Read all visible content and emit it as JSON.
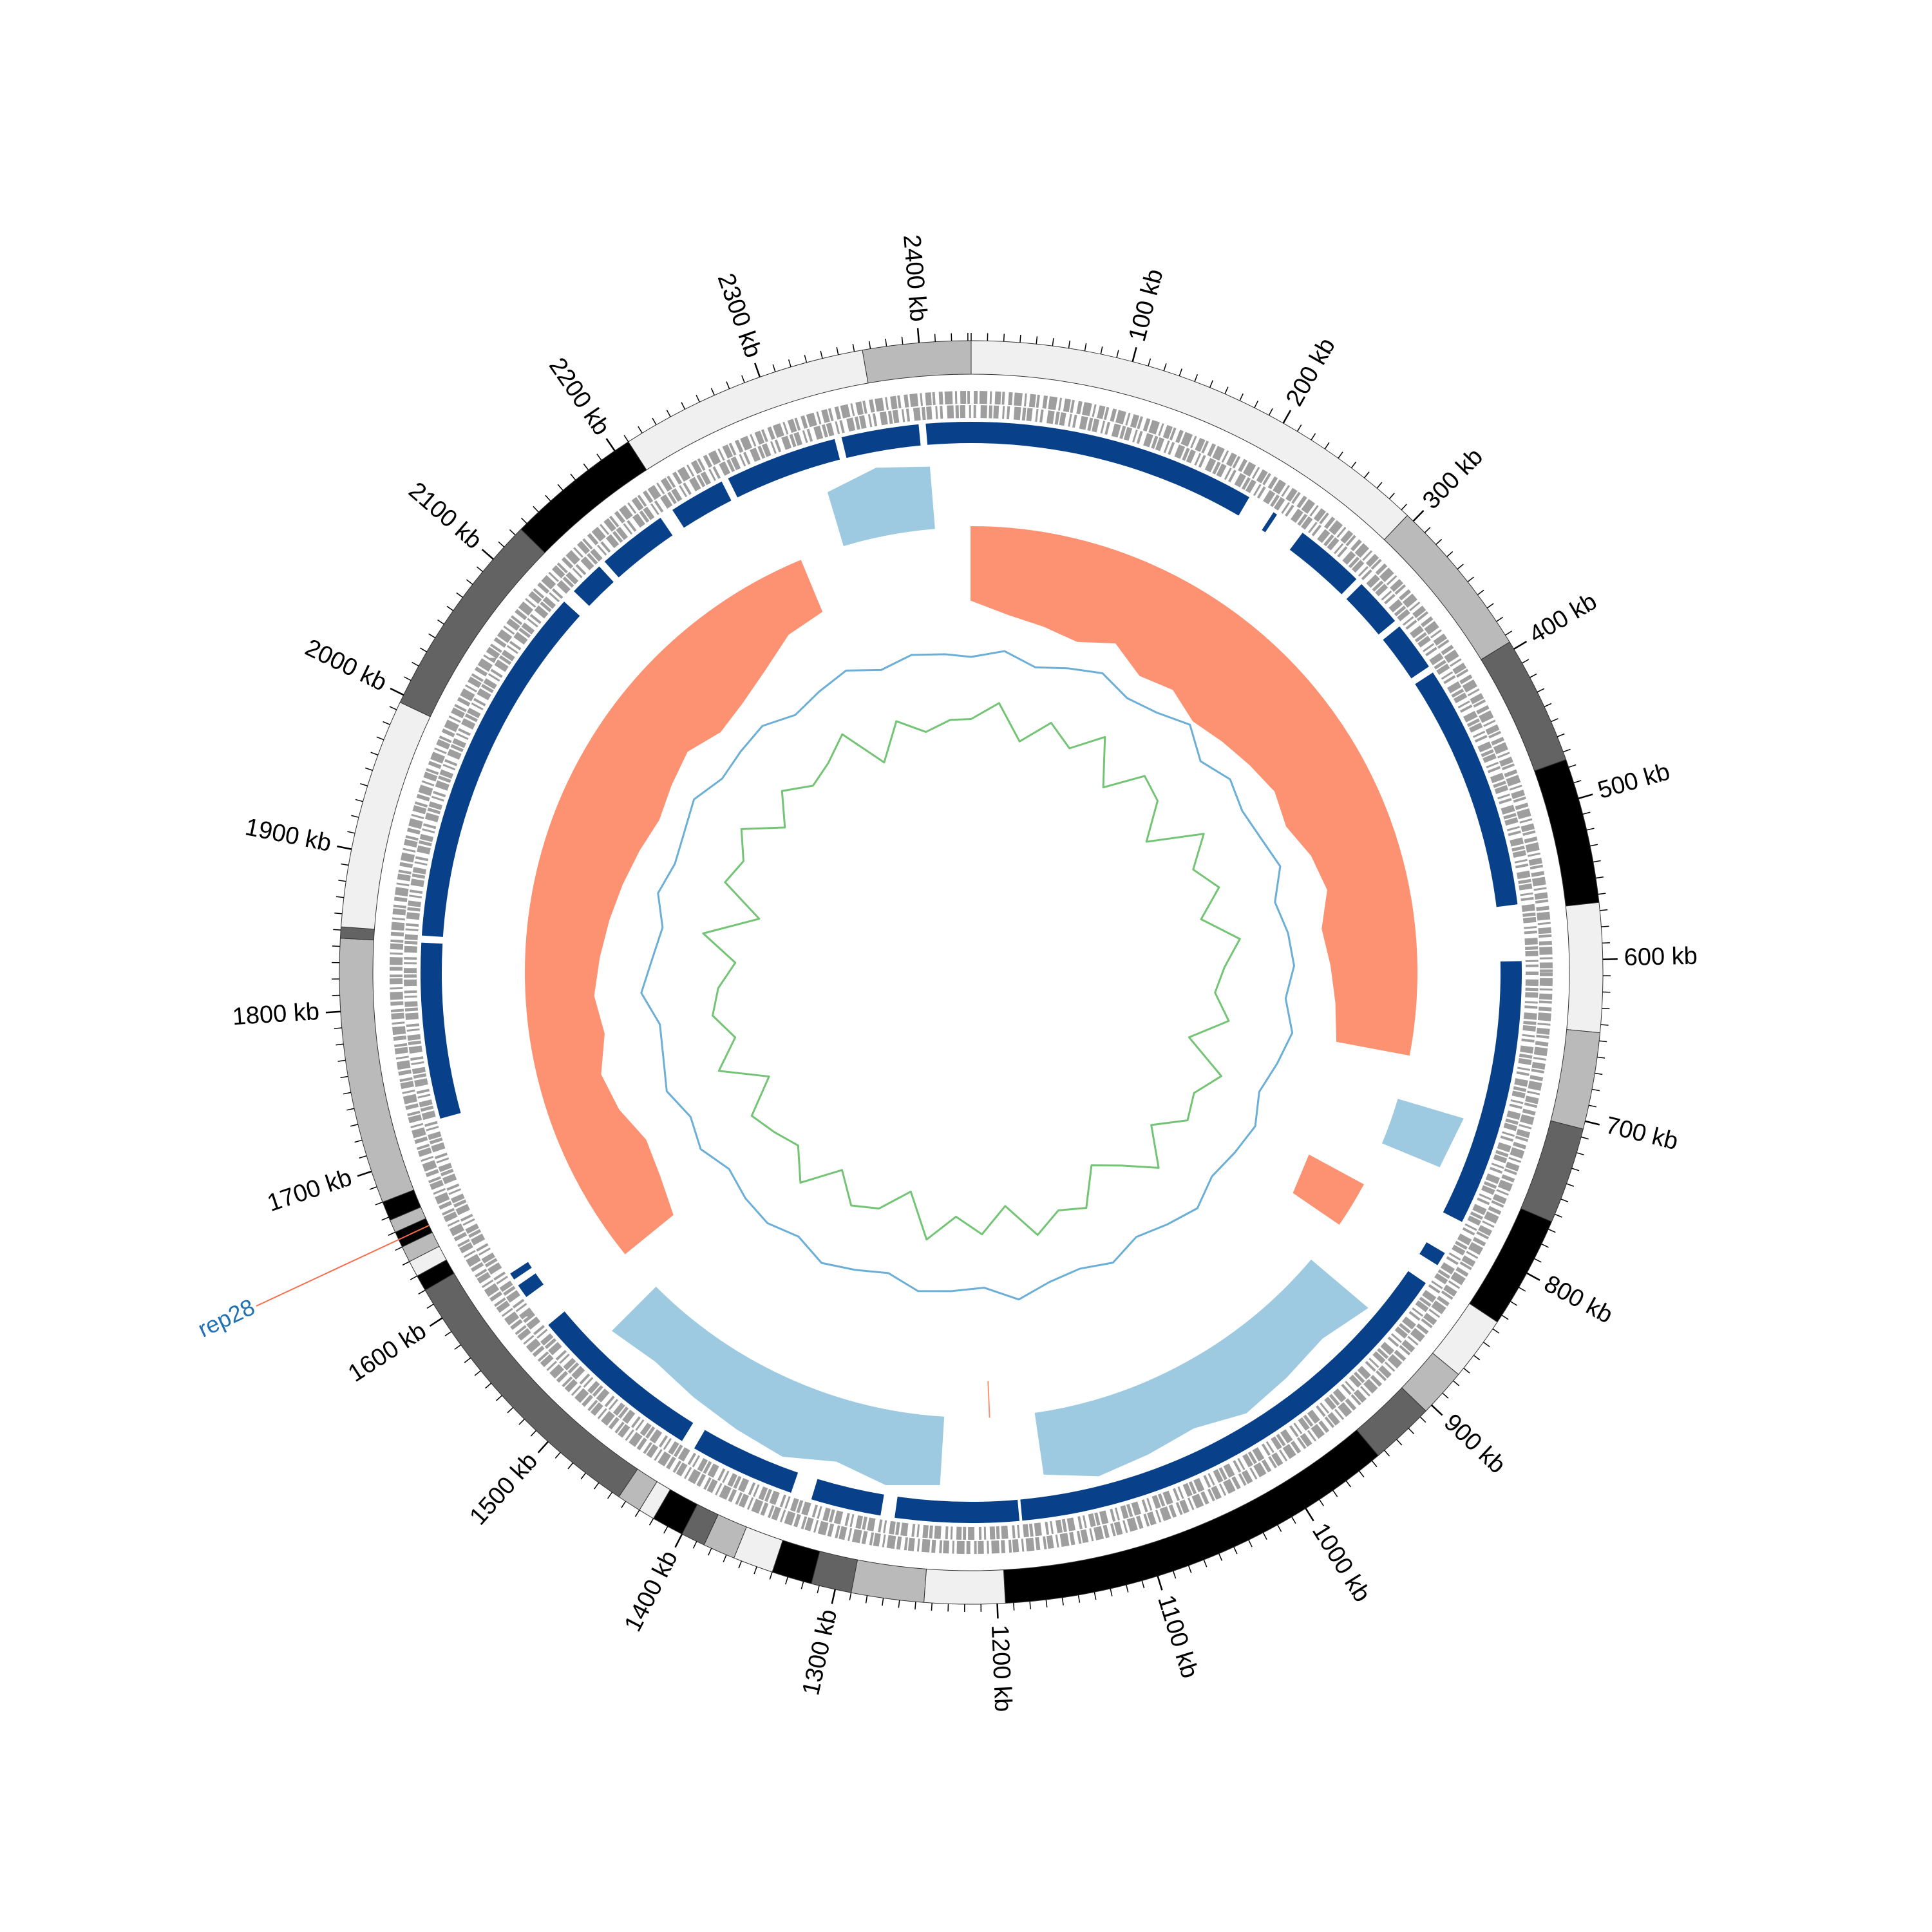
{
  "chart_data": {
    "type": "circos",
    "xlim": [
      0,
      2432
    ],
    "minor_tick_step": 10,
    "xticks": [
      {
        "value": 100,
        "label": "100 kb"
      },
      {
        "value": 200,
        "label": "200 kb"
      },
      {
        "value": 300,
        "label": "300 kb"
      },
      {
        "value": 400,
        "label": "400 kb"
      },
      {
        "value": 500,
        "label": "500 kb"
      },
      {
        "value": 600,
        "label": "600 kb"
      },
      {
        "value": 700,
        "label": "700 kb"
      },
      {
        "value": 800,
        "label": "800 kb"
      },
      {
        "value": 900,
        "label": "900 kb"
      },
      {
        "value": 1000,
        "label": "1000 kb"
      },
      {
        "value": 1100,
        "label": "1100 kb"
      },
      {
        "value": 1200,
        "label": "1200 kb"
      },
      {
        "value": 1300,
        "label": "1300 kb"
      },
      {
        "value": 1400,
        "label": "1400 kb"
      },
      {
        "value": 1500,
        "label": "1500 kb"
      },
      {
        "value": 1600,
        "label": "1600 kb"
      },
      {
        "value": 1700,
        "label": "1700 kb"
      },
      {
        "value": 1800,
        "label": "1800 kb"
      },
      {
        "value": 1900,
        "label": "1900 kb"
      },
      {
        "value": 2000,
        "label": "2000 kb"
      },
      {
        "value": 2100,
        "label": "2100 kb"
      },
      {
        "value": 2200,
        "label": "2200 kb"
      },
      {
        "value": 2300,
        "label": "2300 kb"
      },
      {
        "value": 2400,
        "label": "2400 kb"
      }
    ],
    "segments": [
      {
        "start": 0,
        "end": 295,
        "color": "#f0f0f0"
      },
      {
        "start": 295,
        "end": 395,
        "color": "#bababa"
      },
      {
        "start": 395,
        "end": 475,
        "color": "#636363"
      },
      {
        "start": 475,
        "end": 565,
        "color": "#000000"
      },
      {
        "start": 565,
        "end": 645,
        "color": "#f0f0f0"
      },
      {
        "start": 645,
        "end": 705,
        "color": "#bababa"
      },
      {
        "start": 705,
        "end": 765,
        "color": "#636363"
      },
      {
        "start": 765,
        "end": 835,
        "color": "#000000"
      },
      {
        "start": 835,
        "end": 875,
        "color": "#f0f0f0"
      },
      {
        "start": 875,
        "end": 905,
        "color": "#bababa"
      },
      {
        "start": 905,
        "end": 945,
        "color": "#636363"
      },
      {
        "start": 945,
        "end": 1195,
        "color": "#000000"
      },
      {
        "start": 1195,
        "end": 1245,
        "color": "#f0f0f0"
      },
      {
        "start": 1245,
        "end": 1290,
        "color": "#bababa"
      },
      {
        "start": 1290,
        "end": 1315,
        "color": "#636363"
      },
      {
        "start": 1315,
        "end": 1340,
        "color": "#000000"
      },
      {
        "start": 1340,
        "end": 1365,
        "color": "#f0f0f0"
      },
      {
        "start": 1365,
        "end": 1385,
        "color": "#bababa"
      },
      {
        "start": 1385,
        "end": 1400,
        "color": "#636363"
      },
      {
        "start": 1400,
        "end": 1420,
        "color": "#000000"
      },
      {
        "start": 1420,
        "end": 1430,
        "color": "#f0f0f0"
      },
      {
        "start": 1430,
        "end": 1445,
        "color": "#bababa"
      },
      {
        "start": 1445,
        "end": 1620,
        "color": "#636363"
      },
      {
        "start": 1620,
        "end": 1630,
        "color": "#000000"
      },
      {
        "start": 1630,
        "end": 1640,
        "color": "#f0f0f0"
      },
      {
        "start": 1640,
        "end": 1650,
        "color": "#bababa"
      },
      {
        "start": 1650,
        "end": 1660,
        "color": "#000000"
      },
      {
        "start": 1660,
        "end": 1668,
        "color": "#bababa"
      },
      {
        "start": 1668,
        "end": 1680,
        "color": "#000000"
      },
      {
        "start": 1680,
        "end": 1845,
        "color": "#bababa"
      },
      {
        "start": 1845,
        "end": 1852,
        "color": "#636363"
      },
      {
        "start": 1852,
        "end": 1995,
        "color": "#f0f0f0"
      },
      {
        "start": 1995,
        "end": 2125,
        "color": "#636363"
      },
      {
        "start": 2125,
        "end": 2210,
        "color": "#000000"
      },
      {
        "start": 2210,
        "end": 2365,
        "color": "#f0f0f0"
      },
      {
        "start": 2365,
        "end": 2432,
        "color": "#bababa"
      }
    ],
    "block_color": "#08408a",
    "blocks": [
      {
        "start": 0,
        "end": 205
      },
      {
        "start": 225,
        "end": 228
      },
      {
        "start": 250,
        "end": 300
      },
      {
        "start": 305,
        "end": 340
      },
      {
        "start": 345,
        "end": 380
      },
      {
        "start": 385,
        "end": 560
      },
      {
        "start": 600,
        "end": 790
      },
      {
        "start": 815,
        "end": 825
      },
      {
        "start": 840,
        "end": 1180
      },
      {
        "start": 1182,
        "end": 1270
      },
      {
        "start": 1280,
        "end": 1330
      },
      {
        "start": 1345,
        "end": 1420
      },
      {
        "start": 1430,
        "end": 1555
      },
      {
        "start": 1580,
        "end": 1590
      },
      {
        "start": 1595,
        "end": 1600
      },
      {
        "start": 1720,
        "end": 1845
      },
      {
        "start": 1850,
        "end": 2110
      },
      {
        "start": 2120,
        "end": 2145
      },
      {
        "start": 2150,
        "end": 2200
      },
      {
        "start": 2210,
        "end": 2250
      },
      {
        "start": 2255,
        "end": 2335
      },
      {
        "start": 2340,
        "end": 2395
      },
      {
        "start": 2400,
        "end": 2432
      }
    ],
    "skew": {
      "positive_color": "#fc9272",
      "negative_color": "#9ecae1",
      "x": [
        0,
        40,
        80,
        120,
        160,
        200,
        240,
        280,
        320,
        360,
        400,
        440,
        480,
        520,
        560,
        600,
        640,
        680,
        720,
        760,
        800,
        840,
        880,
        920,
        960,
        1000,
        1040,
        1080,
        1120,
        1160,
        1200,
        1240,
        1280,
        1320,
        1360,
        1400,
        1440,
        1480,
        1520,
        1560,
        1600,
        1640,
        1680,
        1720,
        1760,
        1800,
        1840,
        1880,
        1920,
        1960,
        2000,
        2040,
        2080,
        2120,
        2160,
        2200,
        2240,
        2280,
        2320,
        2360,
        2400
      ],
      "values": [
        0.6,
        0.7,
        0.75,
        0.8,
        0.7,
        0.85,
        0.8,
        0.9,
        0.85,
        0.8,
        0.75,
        0.8,
        0.7,
        0.65,
        0.75,
        0.7,
        0.65,
        0.6,
        -0.55,
        -0.5,
        0.5,
        0.45,
        -0.6,
        -0.5,
        -0.55,
        -0.6,
        -0.5,
        -0.55,
        -0.6,
        -0.5,
        0.3,
        -0.55,
        -0.6,
        -0.5,
        -0.6,
        -0.55,
        -0.5,
        -0.45,
        -0.5,
        0.5,
        0.6,
        0.65,
        0.55,
        0.5,
        0.6,
        0.55,
        0.6,
        0.65,
        0.7,
        0.75,
        0.8,
        0.75,
        0.7,
        0.8,
        0.75,
        0.65,
        0.5,
        0.45,
        -0.45,
        -0.55,
        -0.5
      ]
    },
    "gc": {
      "x": [
        0,
        40,
        80,
        120,
        160,
        200,
        240,
        280,
        320,
        360,
        400,
        440,
        480,
        520,
        560,
        600,
        640,
        680,
        720,
        760,
        800,
        840,
        880,
        920,
        960,
        1000,
        1040,
        1080,
        1120,
        1160,
        1200,
        1240,
        1280,
        1320,
        1360,
        1400,
        1440,
        1480,
        1520,
        1560,
        1600,
        1640,
        1680,
        1720,
        1760,
        1800,
        1840,
        1880,
        1920,
        1960,
        2000,
        2040,
        2080,
        2120,
        2160,
        2200,
        2240,
        2280,
        2320,
        2360,
        2400
      ],
      "series": [
        {
          "color": "#6baed6",
          "values": [
            0.5,
            0.7,
            0.4,
            0.6,
            0.8,
            0.5,
            0.6,
            0.9,
            0.4,
            0.7,
            0.5,
            0.6,
            0.8,
            0.4,
            0.6,
            0.7,
            0.5,
            0.8,
            0.6,
            0.4,
            0.7,
            0.6,
            0.5,
            0.8,
            0.6,
            0.4,
            0.7,
            0.5,
            0.6,
            0.9,
            0.5,
            0.6,
            0.7,
            0.4,
            0.6,
            0.8,
            0.5,
            0.7,
            0.6,
            0.4,
            0.7,
            0.5,
            0.8,
            0.6,
            0.5,
            0.9,
            0.6,
            0.4,
            0.7,
            0.5,
            0.6,
            0.8,
            0.5,
            0.6,
            0.7,
            0.4,
            0.6,
            0.8,
            0.5,
            0.7,
            0.6
          ]
        },
        {
          "color": "#74c476",
          "values": [
            0.5,
            0.3,
            0.7,
            0.4,
            0.6,
            0.3,
            0.8,
            0.4,
            0.5,
            0.9,
            0.3,
            0.6,
            0.4,
            0.7,
            0.3,
            0.5,
            0.6,
            0.4,
            0.8,
            0.3,
            0.5,
            0.4,
            0.7,
            0.3,
            0.6,
            0.8,
            0.4,
            0.5,
            0.3,
            0.7,
            0.4,
            0.6,
            0.3,
            0.8,
            0.5,
            0.4,
            0.7,
            0.3,
            0.6,
            0.5,
            0.4,
            0.8,
            0.3,
            0.6,
            0.4,
            0.5,
            0.7,
            0.3,
            0.9,
            0.4,
            0.5,
            0.3,
            0.7,
            0.4,
            0.6,
            0.5,
            0.3,
            0.8,
            0.4,
            0.6,
            0.5
          ]
        }
      ]
    },
    "annotation": {
      "text": "rep28",
      "position": 1655,
      "line_color": "#fb6a4a",
      "text_color": "#2171b5"
    }
  }
}
